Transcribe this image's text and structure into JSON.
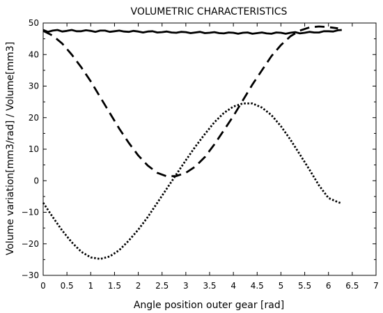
{
  "chart_data": {
    "type": "line",
    "title": "VOLUMETRIC CHARACTERISTICS",
    "xlabel": "Angle position outer gear [rad]",
    "ylabel": "Volume variation[mm3/rad] / Volume[mm3]",
    "xlim": [
      0,
      7
    ],
    "ylim": [
      -30,
      50
    ],
    "xticks": [
      0,
      0.5,
      1,
      1.5,
      2,
      2.5,
      3,
      3.5,
      4,
      4.5,
      5,
      5.5,
      6,
      6.5,
      7
    ],
    "xtick_labels": [
      "0",
      "0.5",
      "1",
      "1.5",
      "2",
      "2.5",
      "3",
      "3.5",
      "4",
      "4.5",
      "5",
      "5.5",
      "6",
      "6.5",
      "7"
    ],
    "yticks": [
      -30,
      -20,
      -10,
      0,
      10,
      20,
      30,
      40,
      50
    ],
    "ytick_labels": [
      "−30",
      "−20",
      "−10",
      "0",
      "10",
      "20",
      "30",
      "40",
      "50"
    ],
    "grid": false,
    "legend": "none",
    "series": [
      {
        "style": "solid",
        "color": "#000000",
        "x": [
          0,
          0.1,
          0.2,
          0.3,
          0.4,
          0.5,
          0.6,
          0.7,
          0.8,
          0.9,
          1.0,
          1.1,
          1.2,
          1.3,
          1.4,
          1.5,
          1.6,
          1.7,
          1.8,
          1.9,
          2.0,
          2.1,
          2.2,
          2.3,
          2.4,
          2.5,
          2.6,
          2.7,
          2.8,
          2.9,
          3.0,
          3.1,
          3.2,
          3.3,
          3.4,
          3.5,
          3.6,
          3.7,
          3.8,
          3.9,
          4.0,
          4.1,
          4.2,
          4.3,
          4.4,
          4.5,
          4.6,
          4.7,
          4.8,
          4.9,
          5.0,
          5.1,
          5.2,
          5.3,
          5.4,
          5.5,
          5.6,
          5.7,
          5.8,
          5.9,
          6.0,
          6.1,
          6.2,
          6.28
        ],
        "y": [
          47.8,
          47.2,
          47.6,
          47.8,
          47.3,
          47.5,
          47.8,
          47.4,
          47.4,
          47.7,
          47.5,
          47.2,
          47.6,
          47.6,
          47.2,
          47.4,
          47.6,
          47.3,
          47.2,
          47.5,
          47.3,
          47.0,
          47.3,
          47.4,
          47.0,
          47.1,
          47.3,
          47.0,
          46.9,
          47.2,
          47.1,
          46.8,
          47.0,
          47.2,
          46.8,
          46.9,
          47.1,
          46.8,
          46.7,
          47.0,
          46.9,
          46.6,
          46.9,
          47.0,
          46.6,
          46.8,
          47.0,
          46.7,
          46.6,
          47.0,
          46.9,
          46.6,
          46.9,
          47.1,
          46.7,
          46.9,
          47.2,
          47.0,
          47.0,
          47.4,
          47.4,
          47.3,
          47.7,
          47.8
        ]
      },
      {
        "style": "dashed",
        "color": "#000000",
        "x": [
          0,
          0.2,
          0.4,
          0.6,
          0.8,
          1.0,
          1.2,
          1.4,
          1.6,
          1.8,
          2.0,
          2.2,
          2.4,
          2.6,
          2.8,
          3.0,
          3.2,
          3.4,
          3.6,
          3.8,
          4.0,
          4.2,
          4.4,
          4.6,
          4.8,
          5.0,
          5.2,
          5.4,
          5.6,
          5.8,
          6.0,
          6.2
        ],
        "y": [
          47.5,
          46.0,
          43.5,
          40.0,
          36.0,
          31.5,
          26.5,
          21.5,
          16.5,
          12.0,
          8.0,
          4.8,
          2.5,
          1.4,
          1.5,
          2.5,
          4.5,
          7.5,
          11.5,
          16.0,
          20.5,
          25.5,
          30.5,
          35.0,
          39.5,
          43.0,
          45.8,
          47.6,
          48.6,
          48.9,
          48.7,
          48.3
        ]
      },
      {
        "style": "dotted",
        "color": "#000000",
        "x": [
          0,
          0.2,
          0.4,
          0.6,
          0.8,
          1.0,
          1.2,
          1.4,
          1.6,
          1.8,
          2.0,
          2.2,
          2.4,
          2.6,
          2.8,
          3.0,
          3.2,
          3.4,
          3.6,
          3.8,
          4.0,
          4.2,
          4.4,
          4.6,
          4.8,
          5.0,
          5.2,
          5.4,
          5.6,
          5.8,
          6.0,
          6.2,
          6.28
        ],
        "y": [
          -7.0,
          -11.5,
          -15.8,
          -19.5,
          -22.5,
          -24.3,
          -24.8,
          -24.0,
          -22.0,
          -19.0,
          -15.5,
          -11.5,
          -7.0,
          -2.5,
          2.0,
          6.5,
          10.8,
          14.8,
          18.5,
          21.5,
          23.5,
          24.5,
          24.5,
          23.2,
          20.8,
          17.3,
          13.0,
          8.3,
          3.5,
          -1.5,
          -5.5,
          -6.8,
          -7.2
        ]
      }
    ]
  }
}
